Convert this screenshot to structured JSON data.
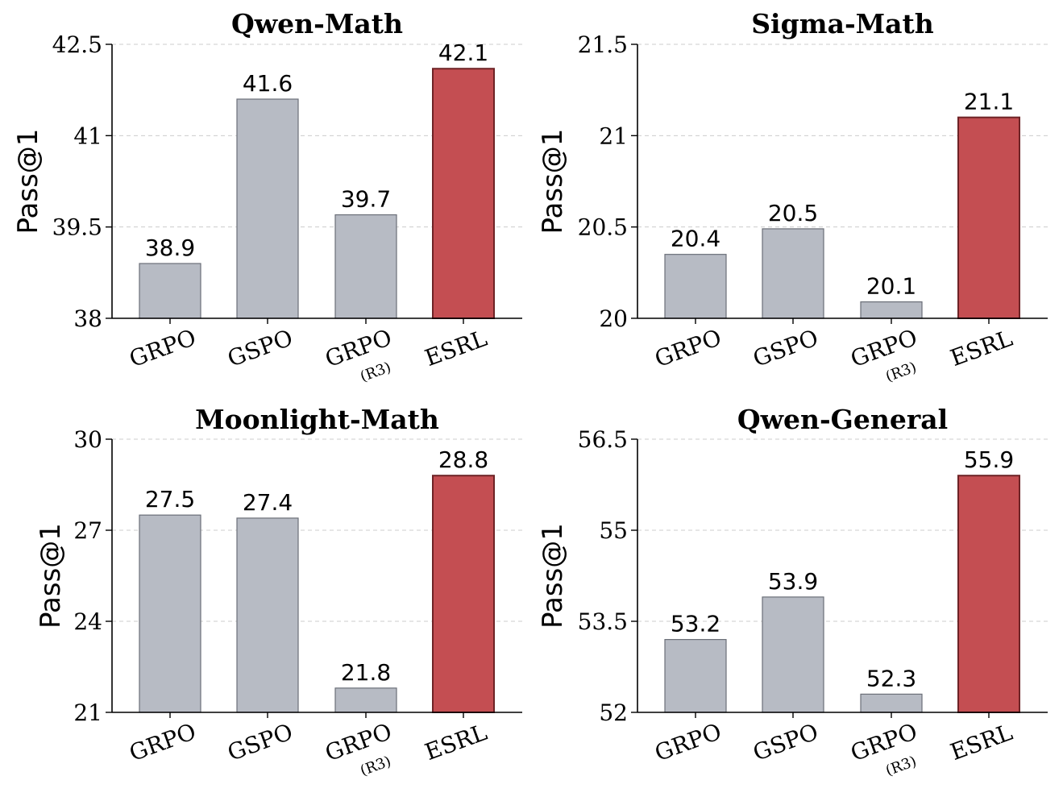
{
  "colors": {
    "baseline_fill": "#b7bbc4",
    "baseline_edge": "#6b6f78",
    "highlight_fill": "#c44e52",
    "highlight_edge": "#6e2326"
  },
  "chart_data": [
    {
      "type": "bar",
      "title": "Qwen-Math",
      "ylabel": "Pass@1",
      "categories": [
        "GRPO",
        "GSPO",
        "GRPO",
        "ESRL"
      ],
      "category_subs": [
        "",
        "",
        "(R3)",
        ""
      ],
      "values": [
        38.9,
        41.6,
        39.7,
        42.1
      ],
      "value_labels": [
        "38.9",
        "41.6",
        "39.7",
        "42.1"
      ],
      "highlight": [
        false,
        false,
        false,
        true
      ],
      "ylim": [
        38,
        42.5
      ],
      "yticks": [
        38,
        39.5,
        41,
        42.5
      ],
      "ytick_labels": [
        "38",
        "39.5",
        "41",
        "42.5"
      ],
      "grid": true
    },
    {
      "type": "bar",
      "title": "Sigma-Math",
      "ylabel": "Pass@1",
      "categories": [
        "GRPO",
        "GSPO",
        "GRPO",
        "ESRL"
      ],
      "category_subs": [
        "",
        "",
        "(R3)",
        ""
      ],
      "values": [
        20.35,
        20.49,
        20.09,
        21.1
      ],
      "value_labels": [
        "20.4",
        "20.5",
        "20.1",
        "21.1"
      ],
      "highlight": [
        false,
        false,
        false,
        true
      ],
      "ylim": [
        20,
        21.5
      ],
      "yticks": [
        20,
        20.5,
        21,
        21.5
      ],
      "ytick_labels": [
        "20",
        "20.5",
        "21",
        "21.5"
      ],
      "grid": true
    },
    {
      "type": "bar",
      "title": "Moonlight-Math",
      "ylabel": "Pass@1",
      "categories": [
        "GRPO",
        "GSPO",
        "GRPO",
        "ESRL"
      ],
      "category_subs": [
        "",
        "",
        "(R3)",
        ""
      ],
      "values": [
        27.5,
        27.4,
        21.8,
        28.8
      ],
      "value_labels": [
        "27.5",
        "27.4",
        "21.8",
        "28.8"
      ],
      "highlight": [
        false,
        false,
        false,
        true
      ],
      "ylim": [
        21,
        30
      ],
      "yticks": [
        21,
        24,
        27,
        30
      ],
      "ytick_labels": [
        "21",
        "24",
        "27",
        "30"
      ],
      "grid": true
    },
    {
      "type": "bar",
      "title": "Qwen-General",
      "ylabel": "Pass@1",
      "categories": [
        "GRPO",
        "GSPO",
        "GRPO",
        "ESRL"
      ],
      "category_subs": [
        "",
        "",
        "(R3)",
        ""
      ],
      "values": [
        53.2,
        53.9,
        52.3,
        55.9
      ],
      "value_labels": [
        "53.2",
        "53.9",
        "52.3",
        "55.9"
      ],
      "highlight": [
        false,
        false,
        false,
        true
      ],
      "ylim": [
        52,
        56.5
      ],
      "yticks": [
        52,
        53.5,
        55,
        56.5
      ],
      "ytick_labels": [
        "52",
        "53.5",
        "55",
        "56.5"
      ],
      "grid": true
    }
  ]
}
